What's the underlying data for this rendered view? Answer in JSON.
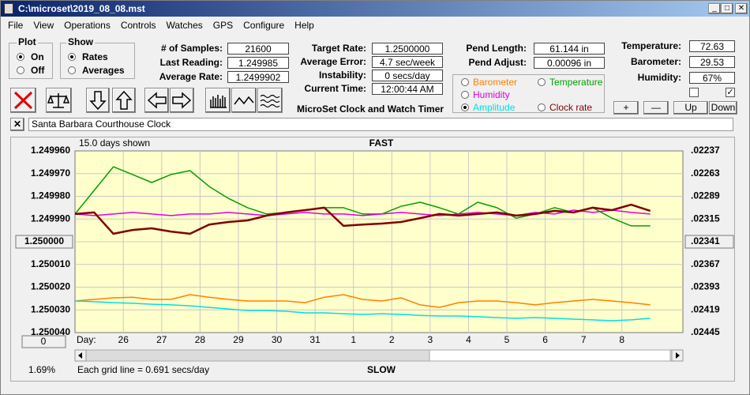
{
  "window": {
    "title": "C:\\microset\\2019_08_08.mst",
    "menu": [
      "File",
      "View",
      "Operations",
      "Controls",
      "Watches",
      "GPS",
      "Configure",
      "Help"
    ]
  },
  "plot_group": {
    "title": "Plot",
    "options": [
      "On",
      "Off"
    ],
    "selected": 0
  },
  "show_group": {
    "title": "Show",
    "options": [
      "Rates",
      "Averages"
    ],
    "selected": 0
  },
  "fields": {
    "left": [
      {
        "label": "# of Samples:",
        "value": 21600
      },
      {
        "label": "Last Reading:",
        "value": 1.249985
      },
      {
        "label": "Average Rate:",
        "value": 1.2499902
      }
    ],
    "middle": [
      {
        "label": "Target Rate:",
        "value": "1.2500000"
      },
      {
        "label": "Average Error:",
        "value": "4.7 sec/week"
      },
      {
        "label": "Instability:",
        "value": "0 secs/day"
      },
      {
        "label": "Current Time:",
        "value": "12:00:44 AM"
      }
    ],
    "pendulum": [
      {
        "label": "Pend Length:",
        "value": "61.144 in"
      },
      {
        "label": "Pend Adjust:",
        "value": "0.00096 in"
      }
    ],
    "environment": [
      {
        "label": "Temperature:",
        "value": 72.63
      },
      {
        "label": "Barometer:",
        "value": 29.53
      },
      {
        "label": "Humidity:",
        "value": "67%"
      }
    ]
  },
  "app_name": "MicroSet Clock and Watch Timer",
  "clock_name": "Santa Barbara Courthouse Clock",
  "env_buttons": [
    "+",
    "—",
    "Up",
    "Down"
  ],
  "checkboxes": [
    false,
    true
  ],
  "selected_series": 3,
  "chart_data": {
    "type": "line",
    "days_shown": "15.0 days shown",
    "top_label": "FAST",
    "bottom_label": "SLOW",
    "x_label": "Day:",
    "grid_note": "Each grid line = 0.691 secs/day",
    "percent": "1.69%",
    "zero_button": "0",
    "y_inverted": true,
    "grid": true,
    "xlim": [
      0,
      15.85
    ],
    "xticks": [
      {
        "value": 1.26,
        "label": "26"
      },
      {
        "value": 2.26,
        "label": "27"
      },
      {
        "value": 3.26,
        "label": "28"
      },
      {
        "value": 4.26,
        "label": "29"
      },
      {
        "value": 5.26,
        "label": "30"
      },
      {
        "value": 6.26,
        "label": "31"
      },
      {
        "value": 7.26,
        "label": "1"
      },
      {
        "value": 8.26,
        "label": "2"
      },
      {
        "value": 9.26,
        "label": "3"
      },
      {
        "value": 10.26,
        "label": "4"
      },
      {
        "value": 11.26,
        "label": "5"
      },
      {
        "value": 12.26,
        "label": "6"
      },
      {
        "value": 13.26,
        "label": "7"
      },
      {
        "value": 14.26,
        "label": "8"
      }
    ],
    "ylim": [
      1.24996,
      1.25004
    ],
    "yticks": [
      {
        "value": 1.24996,
        "label": "1.249960"
      },
      {
        "value": 1.24997,
        "label": "1.249970"
      },
      {
        "value": 1.24998,
        "label": "1.249980"
      },
      {
        "value": 1.24999,
        "label": "1.249990"
      },
      {
        "value": 1.25,
        "label": "1.250000"
      },
      {
        "value": 1.25001,
        "label": "1.250010"
      },
      {
        "value": 1.25002,
        "label": "1.250020"
      },
      {
        "value": 1.25003,
        "label": "1.250030"
      },
      {
        "value": 1.25004,
        "label": "1.250040"
      }
    ],
    "y2lim": [
      0.02237,
      0.02445
    ],
    "y2ticks": [
      {
        "value": 0.02237,
        "label": ".02237"
      },
      {
        "value": 0.02263,
        "label": ".02263"
      },
      {
        "value": 0.02289,
        "label": ".02289"
      },
      {
        "value": 0.02315,
        "label": ".02315"
      },
      {
        "value": 0.02341,
        "label": ".02341"
      },
      {
        "value": 0.02367,
        "label": ".02367"
      },
      {
        "value": 0.02393,
        "label": ".02393"
      },
      {
        "value": 0.02419,
        "label": ".02419"
      },
      {
        "value": 0.02445,
        "label": ".02445"
      }
    ],
    "x": [
      0,
      0.5,
      1,
      1.5,
      2,
      2.5,
      3,
      3.5,
      4,
      4.5,
      5,
      5.5,
      6,
      6.5,
      7,
      7.5,
      8,
      8.5,
      9,
      9.5,
      10,
      10.5,
      11,
      11.5,
      12,
      12.5,
      13,
      13.5,
      14,
      14.5,
      15
    ],
    "series": [
      {
        "name": "Barometer",
        "color": "#ff8000",
        "values": [
          1.2500261,
          1.2500254,
          1.2500247,
          1.2500244,
          1.2500254,
          1.2500254,
          1.2500233,
          1.2500244,
          1.2500254,
          1.2500261,
          1.2500261,
          1.2500261,
          1.2500268,
          1.2500244,
          1.2500233,
          1.2500254,
          1.2500261,
          1.2500247,
          1.2500278,
          1.2500289,
          1.2500268,
          1.2500261,
          1.2500261,
          1.2500268,
          1.2500278,
          1.2500268,
          1.2500261,
          1.2500254,
          1.2500261,
          1.2500268,
          1.2500278
        ]
      },
      {
        "name": "Temperature",
        "color": "#00a000",
        "values": [
          1.2499878,
          1.2499774,
          1.249967,
          1.2499704,
          1.2499739,
          1.2499704,
          1.2499687,
          1.2499757,
          1.2499809,
          1.249985,
          1.2499878,
          1.2499871,
          1.2499861,
          1.249985,
          1.249985,
          1.2499878,
          1.2499878,
          1.2499844,
          1.2499826,
          1.249985,
          1.2499878,
          1.2499826,
          1.249985,
          1.2499896,
          1.2499878,
          1.249985,
          1.2499871,
          1.249985,
          1.2499896,
          1.249993,
          1.249993
        ]
      },
      {
        "name": "Humidity",
        "color": "#e000e0",
        "values": [
          1.2499878,
          1.2499885,
          1.2499878,
          1.2499871,
          1.2499878,
          1.2499885,
          1.2499878,
          1.2499878,
          1.2499871,
          1.2499878,
          1.2499885,
          1.2499878,
          1.2499871,
          1.2499878,
          1.2499878,
          1.2499885,
          1.2499878,
          1.2499871,
          1.2499878,
          1.2499885,
          1.2499878,
          1.2499871,
          1.2499878,
          1.2499885,
          1.2499871,
          1.2499878,
          1.2499861,
          1.2499871,
          1.2499861,
          1.2499871,
          1.2499878
        ]
      },
      {
        "name": "Amplitude",
        "color": "#00e0e0",
        "values": [
          1.2500261,
          1.2500264,
          1.2500268,
          1.2500271,
          1.2500275,
          1.2500278,
          1.2500282,
          1.2500289,
          1.2500296,
          1.2500303,
          1.2500303,
          1.2500306,
          1.2500313,
          1.2500313,
          1.2500317,
          1.250032,
          1.2500317,
          1.250032,
          1.2500324,
          1.2500327,
          1.2500327,
          1.250033,
          1.2500334,
          1.2500337,
          1.2500334,
          1.2500337,
          1.2500341,
          1.2500344,
          1.2500348,
          1.2500344,
          1.2500337
        ]
      },
      {
        "name": "Clock rate",
        "color": "#800000",
        "values": [
          1.2499878,
          1.2499871,
          1.2499965,
          1.2499948,
          1.2499941,
          1.2499955,
          1.2499965,
          1.2499924,
          1.2499913,
          1.2499906,
          1.2499885,
          1.2499871,
          1.2499861,
          1.249985,
          1.249993,
          1.2499924,
          1.249992,
          1.2499913,
          1.2499896,
          1.2499878,
          1.2499885,
          1.2499878,
          1.2499871,
          1.2499885,
          1.2499878,
          1.2499864,
          1.2499871,
          1.249985,
          1.2499861,
          1.2499837,
          1.2499864
        ]
      }
    ]
  }
}
